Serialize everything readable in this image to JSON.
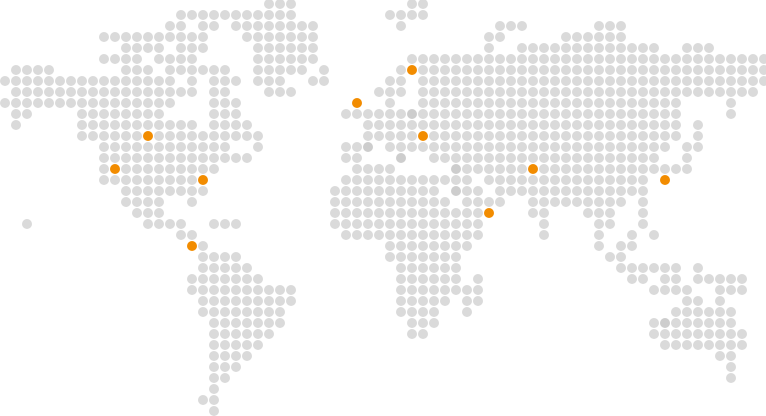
{
  "map": {
    "style": "dotted-world-map",
    "dot_color": "#dadada",
    "muted_dot_color": "#cdcdcd",
    "highlight_color": "#f28c00",
    "highlight_icon": "location-marker-dot"
  }
}
